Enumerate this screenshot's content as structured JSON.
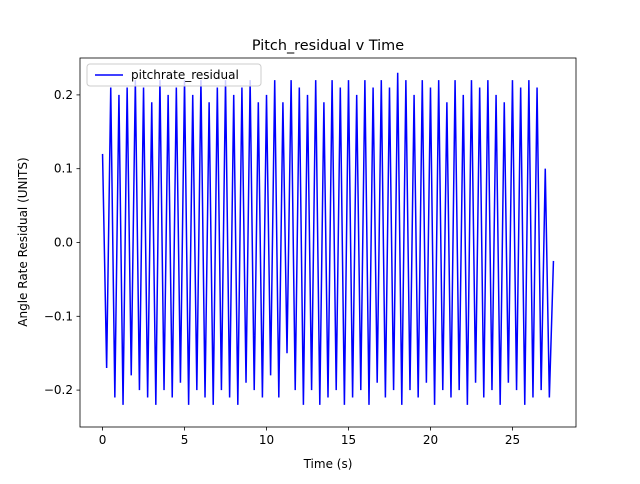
{
  "chart_data": {
    "type": "line",
    "title": "Pitch_residual v Time",
    "x_label": "Time (s)",
    "y_label": "Angle Rate Residual (UNITS)",
    "x": [
      0,
      0.25,
      0.5,
      0.75,
      1,
      1.25,
      1.5,
      1.75,
      2,
      2.25,
      2.5,
      2.75,
      3,
      3.25,
      3.5,
      3.75,
      4,
      4.25,
      4.5,
      4.75,
      5,
      5.25,
      5.5,
      5.75,
      6,
      6.25,
      6.5,
      6.75,
      7,
      7.25,
      7.5,
      7.75,
      8,
      8.25,
      8.5,
      8.75,
      9,
      9.25,
      9.5,
      9.75,
      10,
      10.25,
      10.5,
      10.75,
      11,
      11.25,
      11.5,
      11.75,
      12,
      12.25,
      12.5,
      12.75,
      13,
      13.25,
      13.5,
      13.75,
      14,
      14.25,
      14.5,
      14.75,
      15,
      15.25,
      15.5,
      15.75,
      16,
      16.25,
      16.5,
      16.75,
      17,
      17.25,
      17.5,
      17.75,
      18,
      18.25,
      18.5,
      18.75,
      19,
      19.25,
      19.5,
      19.75,
      20,
      20.25,
      20.5,
      20.75,
      21,
      21.25,
      21.5,
      21.75,
      22,
      22.25,
      22.5,
      22.75,
      23,
      23.25,
      23.5,
      23.75,
      24,
      24.25,
      24.5,
      24.75,
      25,
      25.25,
      25.5,
      25.75,
      26,
      26.25,
      26.5,
      26.75,
      27,
      27.25,
      27.5
    ],
    "series": [
      {
        "name": "pitchrate_residual",
        "color": "#0000ff",
        "values": [
          0.12,
          -0.17,
          0.21,
          -0.21,
          0.2,
          -0.22,
          0.21,
          -0.18,
          0.22,
          -0.2,
          0.21,
          -0.21,
          0.19,
          -0.22,
          0.22,
          -0.2,
          0.2,
          -0.21,
          0.21,
          -0.19,
          0.22,
          -0.22,
          0.2,
          -0.2,
          0.22,
          -0.21,
          0.19,
          -0.22,
          0.21,
          -0.2,
          0.22,
          -0.21,
          0.2,
          -0.22,
          0.21,
          -0.19,
          0.22,
          -0.2,
          0.19,
          -0.21,
          0.2,
          -0.18,
          0.22,
          -0.21,
          0.19,
          -0.15,
          0.22,
          -0.2,
          0.21,
          -0.22,
          0.2,
          -0.2,
          0.22,
          -0.22,
          0.19,
          -0.21,
          0.22,
          -0.2,
          0.21,
          -0.22,
          0.22,
          -0.21,
          0.2,
          -0.2,
          0.22,
          -0.22,
          0.21,
          -0.19,
          0.22,
          -0.21,
          0.21,
          -0.2,
          0.23,
          -0.22,
          0.22,
          -0.2,
          0.2,
          -0.21,
          0.22,
          -0.19,
          0.21,
          -0.22,
          0.22,
          -0.2,
          0.19,
          -0.21,
          0.22,
          -0.2,
          0.2,
          -0.22,
          0.22,
          -0.19,
          0.21,
          -0.21,
          0.22,
          -0.2,
          0.2,
          -0.22,
          0.19,
          -0.19,
          0.22,
          -0.2,
          0.21,
          -0.22,
          0.22,
          -0.21,
          0.21,
          -0.2,
          0.1,
          -0.21,
          -0.025
        ]
      }
    ],
    "xlim": [
      -1.375,
      28.875
    ],
    "ylim": [
      -0.25,
      0.25
    ],
    "xticks": [
      0,
      5,
      10,
      15,
      20,
      25
    ],
    "yticks": [
      {
        "value": -0.2,
        "label": "−0.2"
      },
      {
        "value": -0.1,
        "label": "−0.1"
      },
      {
        "value": 0,
        "label": "0.0"
      },
      0.1,
      0.2
    ],
    "legend": "upper left"
  }
}
